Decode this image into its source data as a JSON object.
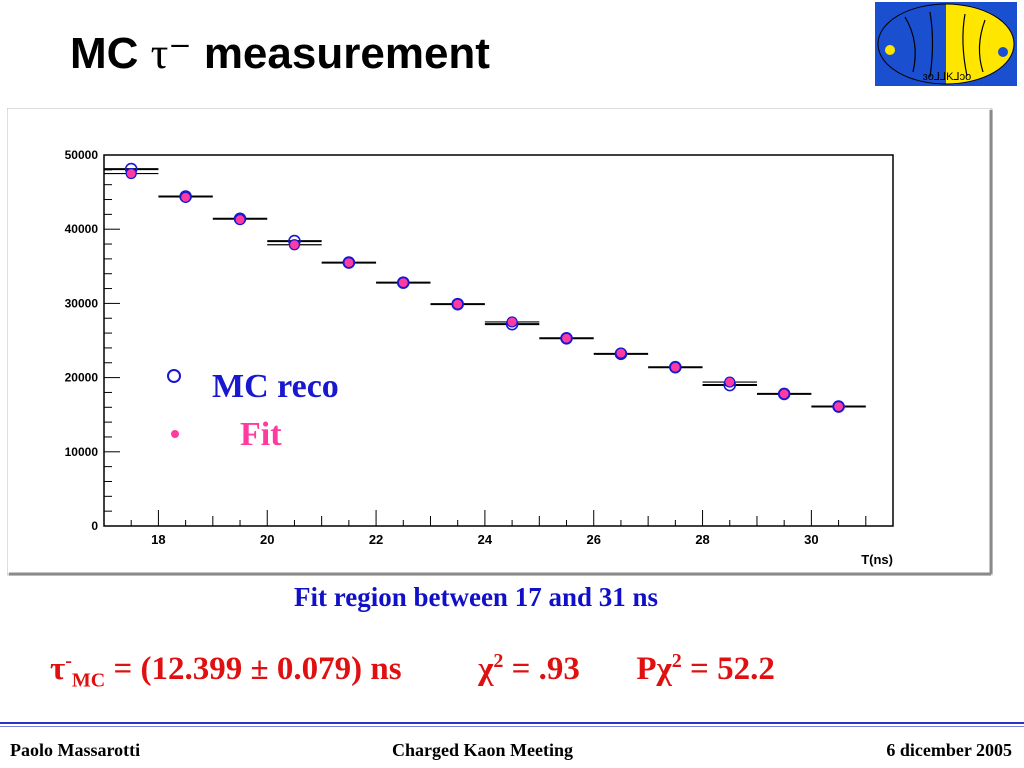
{
  "slide": {
    "title_prefix": "MC",
    "title_tau": "τ⁻",
    "title_suffix": "measurement",
    "fit_region_text": "Fit region between 17 and 31 ns",
    "result": {
      "tau_symbol": "τ",
      "tau_sup": "-",
      "tau_sub": "MC",
      "tau_value": "= (12.399 ± 0.079) ns",
      "chi": "χ",
      "chi_sup": "2",
      "chi_value": "= .93",
      "pchi_p": "Pχ",
      "pchi_sup": "2",
      "pchi_value": "= 52.2"
    },
    "legend": {
      "reco_label": "MC reco",
      "fit_label": "Fit"
    },
    "footer": {
      "left": "Paolo Massarotti",
      "center": "Charged Kaon Meeting",
      "right": "6 dicember 2005"
    },
    "logo_text": "ɜo⅃⅃K⅃ɔo"
  },
  "colors": {
    "reco": "#1818d0",
    "fit": "#ff3aa0",
    "result_text": "#e01010",
    "fit_region_text": "#1010c8",
    "logo_blue": "#1a4fd0",
    "logo_yellow": "#ffe600"
  },
  "chart_data": {
    "type": "scatter",
    "xlabel": "T(ns)",
    "ylabel": "",
    "xlim": [
      17,
      31.5
    ],
    "ylim": [
      0,
      50000
    ],
    "xticks": [
      18,
      20,
      22,
      24,
      26,
      28,
      30
    ],
    "yticks": [
      0,
      10000,
      20000,
      30000,
      40000,
      50000
    ],
    "ytick_labels": [
      "0",
      "10000",
      "20000",
      "30000",
      "40000",
      "50000"
    ],
    "bin_width": 1,
    "legend_position": "center-left",
    "grid": false,
    "series": [
      {
        "name": "MC reco",
        "marker": "open-circle",
        "x": [
          17.5,
          18.5,
          19.5,
          20.5,
          21.5,
          22.5,
          23.5,
          24.5,
          25.5,
          26.5,
          27.5,
          28.5,
          29.5,
          30.5
        ],
        "values": [
          48100,
          44400,
          41400,
          38400,
          35500,
          32800,
          29900,
          27200,
          25300,
          23200,
          21400,
          19000,
          17800,
          16100
        ]
      },
      {
        "name": "Fit",
        "marker": "filled-circle",
        "x": [
          17.5,
          18.5,
          19.5,
          20.5,
          21.5,
          22.5,
          23.5,
          24.5,
          25.5,
          26.5,
          27.5,
          28.5,
          29.5,
          30.5
        ],
        "values": [
          47500,
          44300,
          41300,
          37900,
          35500,
          32800,
          29900,
          27500,
          25300,
          23300,
          21400,
          19400,
          17800,
          16100
        ]
      }
    ]
  }
}
